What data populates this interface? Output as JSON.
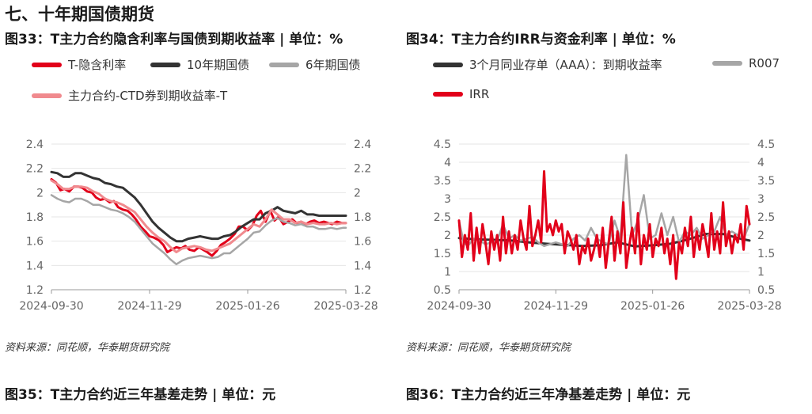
{
  "section": {
    "title": "七、十年期国债期货"
  },
  "figures": [
    {
      "title": "图33：T主力合约隐含利率与国债到期收益率 | 单位：%"
    },
    {
      "title": "图34：T主力合约IRR与资金利率 | 单位：%"
    },
    {
      "title": "图35：T主力合约近三年基差走势 | 单位：元"
    },
    {
      "title": "图36：T主力合约近三年净基差走势 | 单位：元"
    }
  ],
  "sources": [
    "资料来源：同花顺，华泰期货研究院",
    "资料来源：同花顺，华泰期货研究院"
  ],
  "colors": {
    "red": "#e2001a",
    "dark": "#333333",
    "gray": "#a6a6a6",
    "pink": "#f08a8e",
    "grid": "#e6e6e6"
  },
  "chart_data": [
    {
      "type": "line",
      "x_ticks": [
        "2024-09-30",
        "2024-11-29",
        "2025-01-26",
        "2025-03-28"
      ],
      "left_ticks": [
        "2.4",
        "2.2",
        "2",
        "1.8",
        "1.6",
        "1.4",
        "1.2"
      ],
      "right_ticks": [
        "2.4",
        "2.2",
        "2",
        "1.8",
        "1.6",
        "1.4",
        "1.2"
      ],
      "ylim": [
        1.2,
        2.4
      ],
      "grid": true,
      "series": [
        {
          "name": "T-隐含利率",
          "color": "#e2001a",
          "x": [
            0,
            8,
            15,
            22,
            30,
            38,
            45,
            52,
            60,
            68,
            75,
            82,
            90,
            98,
            105,
            112,
            120,
            128,
            135,
            142,
            150,
            158,
            165,
            172,
            180,
            188,
            195,
            202,
            210,
            218,
            225,
            232,
            240,
            248,
            255,
            262,
            270,
            278,
            285,
            292,
            300,
            308,
            315,
            322,
            330,
            338,
            345,
            352,
            360,
            368,
            375,
            382,
            390,
            398,
            405,
            412,
            420,
            428,
            435,
            442,
            450,
            458,
            465,
            472,
            480,
            488,
            495
          ],
          "values": [
            2.11,
            2.08,
            2.02,
            2.03,
            2.01,
            2.05,
            2.05,
            2.04,
            2.01,
            2.0,
            1.96,
            1.94,
            1.95,
            1.92,
            1.93,
            1.88,
            1.86,
            1.85,
            1.82,
            1.78,
            1.72,
            1.68,
            1.64,
            1.63,
            1.61,
            1.57,
            1.51,
            1.53,
            1.55,
            1.54,
            1.56,
            1.53,
            1.52,
            1.55,
            1.53,
            1.51,
            1.48,
            1.52,
            1.57,
            1.59,
            1.62,
            1.66,
            1.72,
            1.72,
            1.69,
            1.73,
            1.81,
            1.85,
            1.76,
            1.85,
            1.77,
            1.8,
            1.74,
            1.76,
            1.78,
            1.75,
            1.76,
            1.74,
            1.76,
            1.77,
            1.75,
            1.76,
            1.75,
            1.74,
            1.76,
            1.75,
            1.75
          ]
        },
        {
          "name": "10年期国债",
          "color": "#333333",
          "x": [
            0,
            10,
            20,
            30,
            40,
            50,
            60,
            70,
            80,
            90,
            100,
            110,
            120,
            130,
            140,
            150,
            160,
            170,
            180,
            190,
            200,
            210,
            220,
            230,
            240,
            250,
            260,
            270,
            280,
            290,
            300,
            310,
            320,
            330,
            340,
            350,
            360,
            370,
            380,
            390,
            400,
            410,
            420,
            430,
            440,
            450,
            460,
            470,
            480,
            490,
            495
          ],
          "values": [
            2.17,
            2.16,
            2.13,
            2.13,
            2.16,
            2.16,
            2.14,
            2.12,
            2.11,
            2.08,
            2.07,
            2.05,
            2.04,
            2.0,
            1.96,
            1.9,
            1.83,
            1.76,
            1.71,
            1.67,
            1.63,
            1.6,
            1.6,
            1.62,
            1.63,
            1.64,
            1.63,
            1.62,
            1.62,
            1.64,
            1.65,
            1.68,
            1.72,
            1.75,
            1.78,
            1.78,
            1.83,
            1.85,
            1.88,
            1.85,
            1.84,
            1.83,
            1.85,
            1.82,
            1.82,
            1.81,
            1.81,
            1.81,
            1.81,
            1.81,
            1.81
          ]
        },
        {
          "name": "6年期国债",
          "color": "#a6a6a6",
          "x": [
            0,
            10,
            20,
            30,
            40,
            50,
            60,
            70,
            80,
            90,
            100,
            110,
            120,
            130,
            140,
            150,
            160,
            170,
            180,
            190,
            200,
            210,
            220,
            230,
            240,
            250,
            260,
            270,
            280,
            290,
            300,
            310,
            320,
            330,
            340,
            350,
            360,
            370,
            380,
            390,
            400,
            410,
            420,
            430,
            440,
            450,
            460,
            470,
            480,
            490,
            495
          ],
          "values": [
            1.98,
            1.95,
            1.93,
            1.92,
            1.95,
            1.95,
            1.93,
            1.9,
            1.9,
            1.88,
            1.86,
            1.85,
            1.83,
            1.8,
            1.76,
            1.7,
            1.64,
            1.58,
            1.54,
            1.5,
            1.45,
            1.41,
            1.44,
            1.46,
            1.47,
            1.48,
            1.47,
            1.46,
            1.47,
            1.5,
            1.5,
            1.54,
            1.58,
            1.62,
            1.67,
            1.68,
            1.73,
            1.77,
            1.79,
            1.76,
            1.75,
            1.73,
            1.74,
            1.72,
            1.72,
            1.7,
            1.7,
            1.71,
            1.7,
            1.71,
            1.71
          ]
        },
        {
          "name": "主力合约-CTD券到期收益率-T",
          "color": "#f08a8e",
          "x": [
            0,
            10,
            20,
            30,
            40,
            50,
            60,
            70,
            80,
            90,
            100,
            110,
            120,
            130,
            140,
            150,
            160,
            170,
            180,
            190,
            200,
            210,
            220,
            230,
            240,
            250,
            260,
            270,
            280,
            290,
            300,
            310,
            320,
            330,
            340,
            350,
            360,
            370,
            380,
            390,
            400,
            410,
            420,
            430,
            440,
            450,
            460,
            470,
            480,
            490,
            495
          ],
          "values": [
            2.1,
            2.07,
            2.03,
            2.03,
            2.05,
            2.05,
            2.04,
            2.01,
            1.99,
            1.95,
            1.93,
            1.92,
            1.9,
            1.87,
            1.84,
            1.78,
            1.72,
            1.67,
            1.63,
            1.6,
            1.55,
            1.51,
            1.54,
            1.55,
            1.56,
            1.55,
            1.53,
            1.52,
            1.54,
            1.56,
            1.58,
            1.62,
            1.66,
            1.7,
            1.74,
            1.72,
            1.78,
            1.86,
            1.82,
            1.78,
            1.78,
            1.75,
            1.76,
            1.74,
            1.75,
            1.74,
            1.74,
            1.75,
            1.74,
            1.75,
            1.75
          ]
        }
      ]
    },
    {
      "type": "line",
      "x_ticks": [
        "2024-09-30",
        "2024-11-29",
        "2025-01-26",
        "2025-03-28"
      ],
      "left_ticks": [
        "4.5",
        "4",
        "3.5",
        "3",
        "2.5",
        "2",
        "1.5",
        "1",
        "0.5"
      ],
      "right_ticks": [
        "4.5",
        "4",
        "3.5",
        "3",
        "2.5",
        "2",
        "1.5",
        "1",
        "0.5"
      ],
      "ylim": [
        0.5,
        4.5
      ],
      "grid": true,
      "series": [
        {
          "name": "3个月同业存单（AAA）：到期收益率",
          "color": "#333333",
          "x": [
            0,
            30,
            60,
            90,
            120,
            150,
            180,
            210,
            240,
            270,
            300,
            330,
            360,
            390,
            420,
            450,
            480,
            495
          ],
          "values": [
            1.92,
            1.88,
            1.87,
            1.85,
            1.8,
            1.76,
            1.73,
            1.7,
            1.72,
            1.8,
            1.69,
            1.72,
            1.76,
            1.88,
            2.03,
            2.03,
            1.9,
            1.85
          ]
        },
        {
          "name": "R007",
          "color": "#a6a6a6",
          "x": [
            0,
            8,
            15,
            25,
            35,
            45,
            55,
            65,
            75,
            85,
            95,
            105,
            115,
            125,
            135,
            145,
            155,
            165,
            175,
            185,
            195,
            205,
            215,
            225,
            235,
            245,
            255,
            265,
            275,
            285,
            295,
            305,
            315,
            325,
            335,
            345,
            355,
            365,
            375,
            385,
            395,
            405,
            415,
            425,
            435,
            445,
            455,
            465,
            475,
            485,
            495
          ],
          "values": [
            2.4,
            1.8,
            1.7,
            1.9,
            1.85,
            1.75,
            1.8,
            1.85,
            2.3,
            1.9,
            2.0,
            1.85,
            1.9,
            1.95,
            1.8,
            1.7,
            1.75,
            1.8,
            1.75,
            1.7,
            1.9,
            2.0,
            1.85,
            2.2,
            1.9,
            1.8,
            1.75,
            2.4,
            1.9,
            4.2,
            2.0,
            2.4,
            3.1,
            1.9,
            2.0,
            2.6,
            2.0,
            2.5,
            1.8,
            2.1,
            2.0,
            2.2,
            1.9,
            2.0,
            2.1,
            2.5,
            2.0,
            2.1,
            2.0,
            1.9,
            2.3
          ]
        },
        {
          "name": "IRR",
          "color": "#e2001a",
          "x": [
            0,
            5,
            10,
            15,
            20,
            25,
            30,
            35,
            40,
            45,
            50,
            55,
            60,
            65,
            70,
            75,
            80,
            85,
            90,
            95,
            100,
            105,
            110,
            115,
            120,
            125,
            130,
            135,
            140,
            145,
            150,
            155,
            160,
            165,
            170,
            175,
            180,
            185,
            190,
            195,
            200,
            205,
            210,
            215,
            220,
            225,
            230,
            235,
            240,
            245,
            250,
            255,
            260,
            265,
            270,
            275,
            280,
            285,
            290,
            295,
            300,
            305,
            310,
            315,
            320,
            325,
            330,
            335,
            340,
            345,
            350,
            355,
            360,
            365,
            370,
            375,
            380,
            385,
            390,
            395,
            400,
            405,
            410,
            415,
            420,
            425,
            430,
            435,
            440,
            445,
            450,
            455,
            460,
            465,
            470,
            475,
            480,
            485,
            490,
            495
          ],
          "values": [
            2.4,
            1.4,
            2.0,
            1.6,
            2.6,
            1.3,
            2.2,
            1.5,
            2.3,
            1.8,
            1.2,
            2.1,
            1.6,
            2.0,
            1.3,
            2.5,
            1.5,
            2.1,
            1.5,
            2.0,
            1.6,
            2.4,
            1.9,
            1.6,
            2.8,
            1.7,
            2.0,
            2.4,
            1.8,
            3.75,
            2.1,
            2.3,
            2.0,
            2.4,
            2.1,
            2.3,
            1.5,
            2.1,
            1.9,
            1.6,
            2.0,
            1.2,
            1.7,
            1.5,
            1.9,
            1.3,
            1.6,
            2.0,
            1.4,
            2.2,
            1.1,
            1.8,
            2.5,
            1.3,
            2.1,
            1.5,
            2.9,
            1.1,
            1.7,
            2.2,
            1.5,
            2.6,
            1.2,
            2.0,
            1.6,
            2.3,
            1.4,
            1.9,
            1.7,
            2.2,
            1.5,
            1.9,
            1.2,
            2.0,
            0.8,
            1.8,
            1.5,
            2.2,
            1.7,
            2.5,
            1.4,
            2.1,
            1.6,
            2.3,
            1.9,
            1.4,
            2.6,
            1.6,
            2.1,
            1.5,
            2.9,
            1.7,
            2.1,
            1.5,
            2.0,
            1.8,
            2.3,
            1.6,
            2.8,
            2.3
          ]
        }
      ]
    }
  ]
}
